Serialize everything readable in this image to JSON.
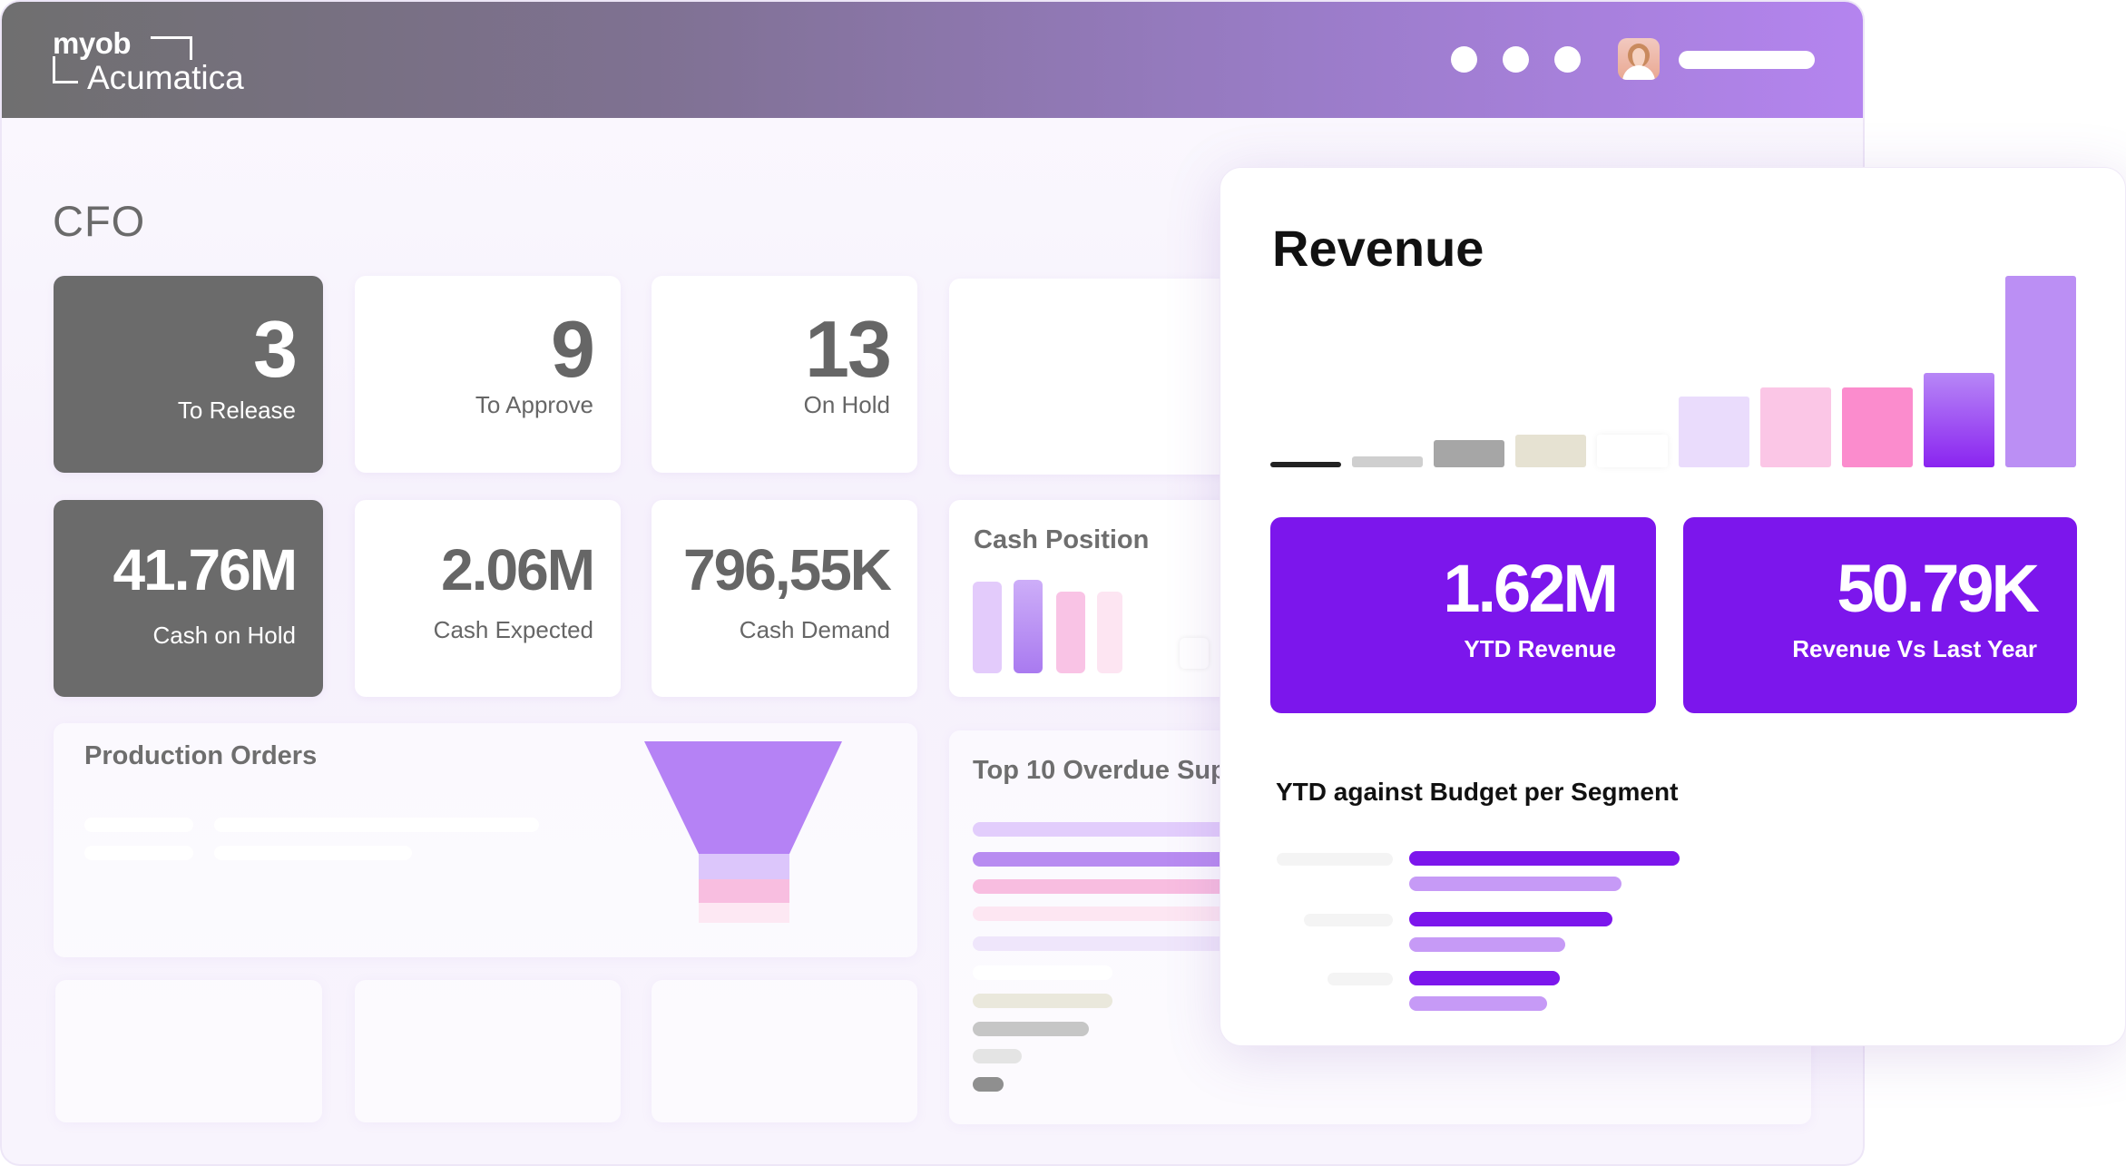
{
  "brand": {
    "line1": "myob",
    "line2": "Acumatica"
  },
  "page_title": "CFO",
  "kpis": {
    "to_release": {
      "value": "3",
      "label": "To Release"
    },
    "to_approve": {
      "value": "9",
      "label": "To Approve"
    },
    "on_hold": {
      "value": "13",
      "label": "On Hold"
    },
    "cash_on_hold": {
      "value": "41.76M",
      "label": "Cash on Hold"
    },
    "cash_expected": {
      "value": "2.06M",
      "label": "Cash Expected"
    },
    "cash_demand": {
      "value": "796,55K",
      "label": "Cash Demand"
    }
  },
  "cards": {
    "cash_position": "Cash Position",
    "production_orders": "Production Orders",
    "top_overdue": "Top 10 Overdue Sup"
  },
  "revenue": {
    "title": "Revenue",
    "ytd_revenue": {
      "value": "1.62M",
      "label": "YTD Revenue"
    },
    "vs_last_year": {
      "value": "50.79K",
      "label": "Revenue Vs Last Year"
    },
    "segment_title": "YTD against Budget per Segment"
  },
  "colors": {
    "accent": "#7c16ec",
    "header_start": "#6f6f6f",
    "header_end": "#b484ef",
    "dark_tile": "#6b6b6b"
  }
}
